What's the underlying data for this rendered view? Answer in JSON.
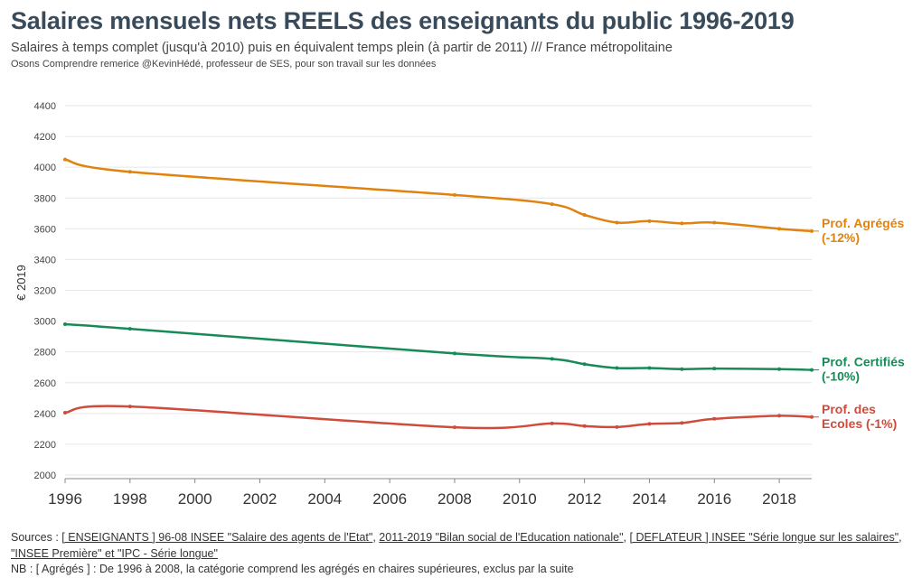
{
  "header": {
    "title": "Salaires mensuels nets REELS des enseignants du public 1996-2019",
    "subtitle": "Salaires à temps complet (jusqu'à 2010) puis en équivalent temps plein (à partir de 2011) /// France métropolitaine",
    "credit": "Osons Comprendre remerice @KevinHédé, professeur de SES, pour son travail sur les données"
  },
  "footer": {
    "sources_prefix": "Sources : ",
    "source_links": [
      "[ ENSEIGNANTS ] 96-08 INSEE \"Salaire des agents de l'Etat\"",
      "2011-2019 \"Bilan social de l'Education nationale\"",
      "[ DEFLATEUR ] INSEE \"Série longue sur les salaires\"",
      "\"INSEE Première\" et \"IPC - Série longue\""
    ],
    "separators": [
      ", ",
      ", ",
      ", "
    ],
    "nb": "NB : [ Agrégés ] : De 1996 à 2008, la catégorie comprend les agrégés en chaires supérieures, exclus par la suite"
  },
  "chart_data": {
    "type": "line",
    "ylabel": "€ 2019",
    "xlabel": "",
    "ylim": [
      2000,
      4400
    ],
    "xlim": [
      1996,
      2019
    ],
    "yticks": [
      2000,
      2200,
      2400,
      2600,
      2800,
      3000,
      3200,
      3400,
      3600,
      3800,
      4000,
      4200,
      4400
    ],
    "xticks": [
      1996,
      1998,
      2000,
      2002,
      2004,
      2006,
      2008,
      2010,
      2012,
      2014,
      2016,
      2018
    ],
    "grid": "horizontal",
    "series": [
      {
        "name": "Prof. Agrégés",
        "label_lines": [
          "Prof. Agrégés",
          "(-12%)"
        ],
        "color": "#e0820e",
        "points": [
          [
            1996,
            4050
          ],
          [
            1998,
            3970
          ],
          [
            2008,
            3820
          ],
          [
            2011,
            3760
          ],
          [
            2012,
            3690
          ],
          [
            2013,
            3640
          ],
          [
            2014,
            3650
          ],
          [
            2015,
            3635
          ],
          [
            2016,
            3640
          ],
          [
            2018,
            3600
          ],
          [
            2019,
            3585
          ]
        ]
      },
      {
        "name": "Prof. Certifiés",
        "label_lines": [
          "Prof. Certifiés",
          "(-10%)"
        ],
        "color": "#178a57",
        "points": [
          [
            1996,
            2980
          ],
          [
            1998,
            2950
          ],
          [
            2008,
            2790
          ],
          [
            2011,
            2755
          ],
          [
            2012,
            2720
          ],
          [
            2013,
            2695
          ],
          [
            2014,
            2695
          ],
          [
            2015,
            2688
          ],
          [
            2016,
            2692
          ],
          [
            2018,
            2688
          ],
          [
            2019,
            2683
          ]
        ]
      },
      {
        "name": "Prof. des Ecoles",
        "label_lines": [
          "Prof. des",
          "Ecoles (-1%)"
        ],
        "color": "#cf4b3b",
        "points": [
          [
            1996,
            2405
          ],
          [
            1998,
            2445
          ],
          [
            2008,
            2310
          ],
          [
            2011,
            2335
          ],
          [
            2012,
            2318
          ],
          [
            2013,
            2312
          ],
          [
            2014,
            2332
          ],
          [
            2015,
            2338
          ],
          [
            2016,
            2365
          ],
          [
            2018,
            2385
          ],
          [
            2019,
            2377
          ]
        ]
      }
    ]
  }
}
